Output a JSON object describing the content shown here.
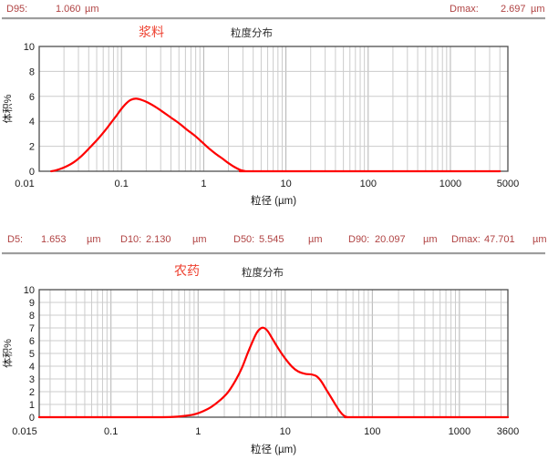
{
  "stats_top": {
    "d95_label": "D95:",
    "d95_value": "1.060",
    "d95_unit": "µm",
    "dmax_label": "Dmax:",
    "dmax_value": "2.697",
    "dmax_unit": "µm"
  },
  "stats_bottom": {
    "d5_label": "D5:",
    "d5_value": "1.653",
    "d5_unit": "µm",
    "d10_label": "D10:",
    "d10_value": "2.130",
    "d10_unit": "µm",
    "d50_label": "D50:",
    "d50_value": "5.545",
    "d50_unit": "µm",
    "d90_label": "D90:",
    "d90_value": "20.097",
    "d90_unit": "µm",
    "dmax_label": "Dmax:",
    "dmax_value": "47.701",
    "dmax_unit": "µm"
  },
  "colors": {
    "curve": "#fe0000",
    "stat_text": "#b04343",
    "sample_title": "#ee4130",
    "grid_minor": "#cccccc",
    "grid_major": "#b3b3b3",
    "frame": "#4d4d4d",
    "tick_text": "#1a1a1a"
  },
  "chart_data": [
    {
      "type": "line",
      "sample": "浆料",
      "title": "粒度分布",
      "xlabel": "粒径 (µm)",
      "ylabel": "体积%",
      "x_scale": "log",
      "x_range": [
        0.01,
        5000
      ],
      "y_range": [
        0,
        10
      ],
      "y_tick_step": 2,
      "grid": true,
      "x_tick_values": [
        0.01,
        0.1,
        1,
        10,
        100,
        1000,
        5000
      ],
      "x_tick_labels": [
        "0.01",
        "0.1",
        "1",
        "10",
        "100",
        "1000",
        "5000"
      ],
      "series": [
        {
          "name": "浆料",
          "peak": {
            "x": 0.15,
            "y": 5.82
          },
          "points": [
            [
              0.014,
              0
            ],
            [
              0.016,
              0.08
            ],
            [
              0.02,
              0.3
            ],
            [
              0.026,
              0.7
            ],
            [
              0.033,
              1.25
            ],
            [
              0.042,
              1.95
            ],
            [
              0.052,
              2.6
            ],
            [
              0.063,
              3.25
            ],
            [
              0.075,
              3.9
            ],
            [
              0.088,
              4.5
            ],
            [
              0.1,
              5.0
            ],
            [
              0.115,
              5.45
            ],
            [
              0.13,
              5.72
            ],
            [
              0.15,
              5.82
            ],
            [
              0.175,
              5.72
            ],
            [
              0.21,
              5.5
            ],
            [
              0.26,
              5.15
            ],
            [
              0.32,
              4.75
            ],
            [
              0.4,
              4.3
            ],
            [
              0.5,
              3.85
            ],
            [
              0.62,
              3.35
            ],
            [
              0.78,
              2.85
            ],
            [
              0.95,
              2.35
            ],
            [
              1.15,
              1.85
            ],
            [
              1.4,
              1.4
            ],
            [
              1.7,
              1.0
            ],
            [
              2.0,
              0.65
            ],
            [
              2.4,
              0.32
            ],
            [
              2.8,
              0.1
            ],
            [
              3.2,
              0.01
            ],
            [
              3.6,
              0
            ],
            [
              5,
              0
            ],
            [
              4000,
              0
            ]
          ]
        }
      ]
    },
    {
      "type": "line",
      "sample": "农药",
      "title": "粒度分布",
      "xlabel": "粒径 (µm)",
      "ylabel": "体积%",
      "x_scale": "log",
      "x_range": [
        0.015,
        3600
      ],
      "y_range": [
        0,
        10
      ],
      "y_tick_step": 1,
      "grid": true,
      "x_tick_values": [
        0.015,
        0.1,
        1,
        10,
        100,
        1000,
        3600
      ],
      "x_tick_labels": [
        "0.015",
        "0.1",
        "1",
        "10",
        "100",
        "1000",
        "3600"
      ],
      "series": [
        {
          "name": "农药",
          "peak": {
            "x": 5.5,
            "y": 7.0
          },
          "points": [
            [
              0.015,
              0
            ],
            [
              0.1,
              0
            ],
            [
              0.3,
              0
            ],
            [
              0.5,
              0.02
            ],
            [
              0.7,
              0.1
            ],
            [
              0.9,
              0.22
            ],
            [
              1.1,
              0.42
            ],
            [
              1.4,
              0.78
            ],
            [
              1.8,
              1.35
            ],
            [
              2.2,
              1.95
            ],
            [
              2.7,
              2.9
            ],
            [
              3.2,
              3.9
            ],
            [
              3.7,
              5.0
            ],
            [
              4.2,
              5.9
            ],
            [
              4.7,
              6.6
            ],
            [
              5.2,
              6.95
            ],
            [
              5.7,
              7.0
            ],
            [
              6.3,
              6.75
            ],
            [
              7.2,
              6.1
            ],
            [
              8.5,
              5.3
            ],
            [
              10,
              4.6
            ],
            [
              12,
              3.95
            ],
            [
              14,
              3.6
            ],
            [
              17,
              3.4
            ],
            [
              20,
              3.35
            ],
            [
              23,
              3.2
            ],
            [
              26,
              2.8
            ],
            [
              30,
              2.1
            ],
            [
              34,
              1.5
            ],
            [
              38,
              0.95
            ],
            [
              42,
              0.5
            ],
            [
              46,
              0.18
            ],
            [
              50,
              0.03
            ],
            [
              55,
              0
            ],
            [
              70,
              0
            ],
            [
              3600,
              0
            ]
          ]
        }
      ]
    }
  ]
}
